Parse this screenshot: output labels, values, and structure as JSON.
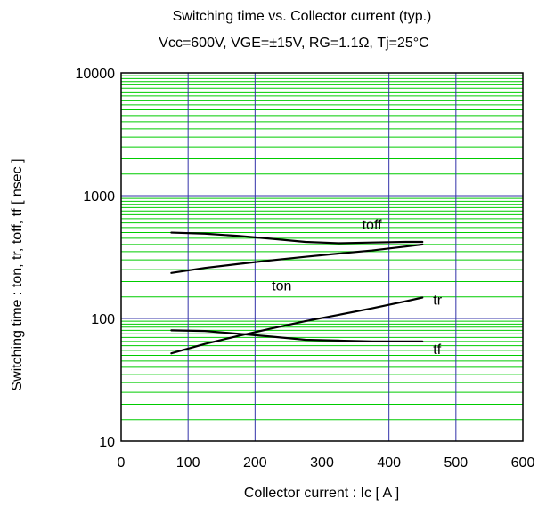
{
  "chart_data": {
    "type": "line",
    "title": "Switching time vs. Collector current (typ.)",
    "subtitle": "Vcc=600V, VGE=±15V, RG=1.1Ω,  Tj=25°C",
    "xlabel": "Collector current : Ic [ A ]",
    "ylabel": "Switching time : ton, tr, toff, tf [ nsec ]",
    "xlim": [
      0,
      600
    ],
    "ylim": [
      10,
      10000
    ],
    "yscale": "log",
    "grid": true,
    "legend": "none",
    "x_ticks": [
      0,
      100,
      200,
      300,
      400,
      500,
      600
    ],
    "y_ticks": [
      10,
      100,
      1000,
      10000
    ],
    "x_tick_labels": [
      "0",
      "100",
      "200",
      "300",
      "400",
      "500",
      "600"
    ],
    "y_tick_labels": [
      "10",
      "100",
      "1000",
      "10000"
    ],
    "colors": {
      "minor_grid": "#00cc00",
      "major_grid": "#3333aa",
      "series": "#000000"
    },
    "series": [
      {
        "name": "toff",
        "x": [
          75,
          125,
          175,
          225,
          275,
          325,
          375,
          425,
          450
        ],
        "y": [
          500,
          490,
          470,
          445,
          420,
          410,
          415,
          420,
          420
        ]
      },
      {
        "name": "ton",
        "x": [
          75,
          125,
          175,
          225,
          275,
          325,
          375,
          425,
          450
        ],
        "y": [
          235,
          258,
          278,
          298,
          318,
          338,
          358,
          385,
          400
        ]
      },
      {
        "name": "tr",
        "x": [
          75,
          125,
          175,
          225,
          275,
          325,
          375,
          425,
          450
        ],
        "y": [
          52,
          62,
          72,
          83,
          95,
          107,
          121,
          138,
          148
        ]
      },
      {
        "name": "tf",
        "x": [
          75,
          125,
          175,
          225,
          275,
          325,
          375,
          425,
          450
        ],
        "y": [
          80,
          79,
          75,
          71,
          67,
          66,
          65,
          65,
          65
        ]
      }
    ]
  }
}
